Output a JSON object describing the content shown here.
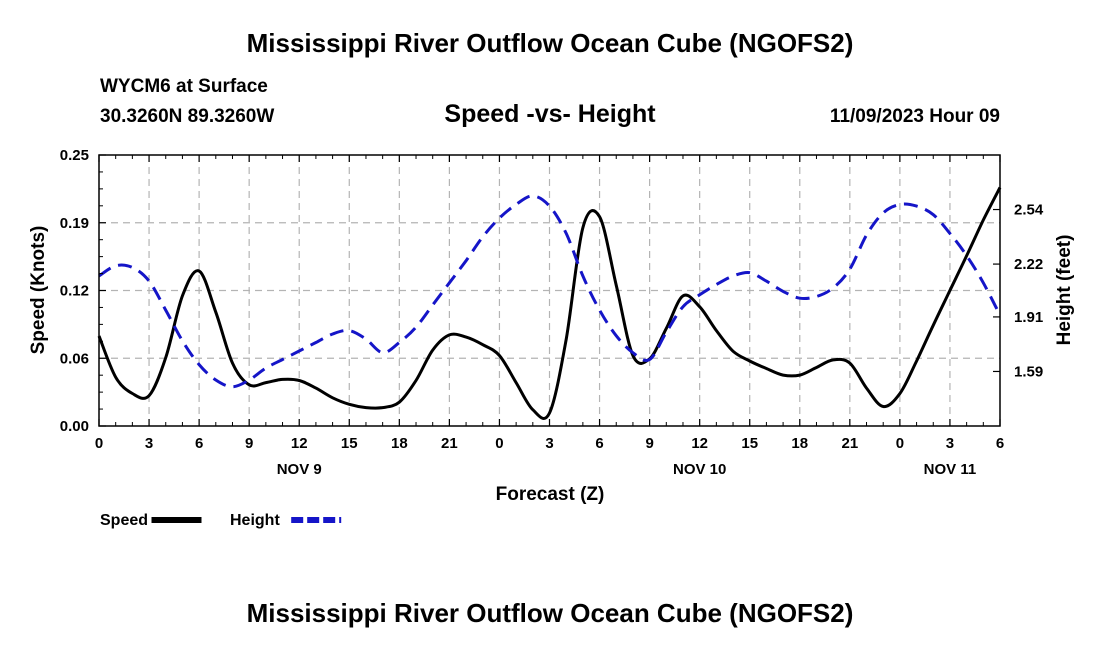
{
  "header": {
    "title_top": "Mississippi River Outflow Ocean Cube (NGOFS2)",
    "title_bottom": "Mississippi River Outflow Ocean Cube (NGOFS2)",
    "station": "WYCM6 at Surface",
    "coords": "30.3260N  89.3260W",
    "subtitle": "Speed -vs- Height",
    "datetime": "11/09/2023 Hour 09"
  },
  "chart_data": {
    "type": "line",
    "title": "Speed -vs- Height",
    "xlabel": "Forecast (Z)",
    "ylabel": "Speed (Knots)",
    "y2label": "Height (feet)",
    "xlim": [
      0,
      54
    ],
    "ylim": [
      0,
      0.25
    ],
    "y2lim": [
      1.27,
      2.86
    ],
    "x_ticks": [
      0,
      3,
      6,
      9,
      12,
      15,
      18,
      21,
      24,
      27,
      30,
      33,
      36,
      39,
      42,
      45,
      48,
      51,
      54
    ],
    "x_tick_labels": [
      "0",
      "3",
      "6",
      "9",
      "12",
      "15",
      "18",
      "21",
      "0",
      "3",
      "6",
      "9",
      "12",
      "15",
      "18",
      "21",
      "0",
      "3",
      "6"
    ],
    "y_ticks": [
      0,
      0.0625,
      0.125,
      0.1875,
      0.25
    ],
    "y_tick_labels": [
      "0.00",
      "0.06",
      "0.12",
      "0.19",
      "0.25"
    ],
    "y2_ticks": [
      1.59,
      1.91,
      2.22,
      2.54
    ],
    "y2_tick_labels": [
      "1.59",
      "1.91",
      "2.22",
      "2.54"
    ],
    "date_labels": [
      {
        "x": 12,
        "label": "NOV 9"
      },
      {
        "x": 36,
        "label": "NOV 10"
      },
      {
        "x": 51,
        "label": "NOV 11"
      }
    ],
    "grid": true,
    "series": [
      {
        "name": "Speed",
        "axis": "left",
        "color": "#000000",
        "x": [
          0,
          1,
          2,
          3,
          4,
          5,
          6,
          7,
          8,
          9,
          10,
          11,
          12,
          13,
          14,
          15,
          16,
          17,
          18,
          19,
          20,
          21,
          22,
          23,
          24,
          25,
          26,
          27,
          28,
          29,
          30,
          31,
          32,
          33,
          34,
          35,
          36,
          37,
          38,
          39,
          40,
          41,
          42,
          43,
          44,
          45,
          46,
          47,
          48,
          49,
          50,
          51,
          52,
          53,
          54
        ],
        "values": [
          0.083,
          0.045,
          0.03,
          0.028,
          0.063,
          0.12,
          0.143,
          0.105,
          0.058,
          0.038,
          0.04,
          0.043,
          0.042,
          0.035,
          0.026,
          0.02,
          0.017,
          0.017,
          0.022,
          0.042,
          0.07,
          0.084,
          0.082,
          0.075,
          0.065,
          0.04,
          0.015,
          0.012,
          0.08,
          0.183,
          0.193,
          0.13,
          0.065,
          0.062,
          0.09,
          0.12,
          0.11,
          0.088,
          0.069,
          0.06,
          0.053,
          0.047,
          0.047,
          0.054,
          0.061,
          0.058,
          0.035,
          0.018,
          0.03,
          0.06,
          0.093,
          0.125,
          0.157,
          0.19,
          0.22
        ]
      },
      {
        "name": "Height",
        "axis": "right",
        "color": "#1515c8",
        "x": [
          0,
          1,
          2,
          3,
          4,
          5,
          6,
          7,
          8,
          9,
          10,
          11,
          12,
          13,
          14,
          15,
          16,
          17,
          18,
          19,
          20,
          21,
          22,
          23,
          24,
          25,
          26,
          27,
          28,
          29,
          30,
          31,
          32,
          33,
          34,
          35,
          36,
          37,
          38,
          39,
          40,
          41,
          42,
          43,
          44,
          45,
          46,
          47,
          48,
          49,
          50,
          51,
          52,
          53,
          54
        ],
        "values": [
          2.15,
          2.21,
          2.2,
          2.12,
          1.95,
          1.77,
          1.63,
          1.54,
          1.5,
          1.54,
          1.61,
          1.66,
          1.71,
          1.76,
          1.81,
          1.83,
          1.78,
          1.7,
          1.76,
          1.85,
          1.98,
          2.11,
          2.24,
          2.38,
          2.49,
          2.57,
          2.62,
          2.56,
          2.4,
          2.15,
          1.95,
          1.8,
          1.7,
          1.66,
          1.82,
          1.97,
          2.04,
          2.1,
          2.15,
          2.17,
          2.12,
          2.06,
          2.02,
          2.03,
          2.08,
          2.19,
          2.39,
          2.52,
          2.57,
          2.56,
          2.51,
          2.4,
          2.27,
          2.11,
          1.92
        ]
      }
    ],
    "legend": [
      {
        "label": "Speed",
        "color": "#000000",
        "style": "solid"
      },
      {
        "label": "Height",
        "color": "#1515c8",
        "style": "dashed"
      }
    ]
  }
}
